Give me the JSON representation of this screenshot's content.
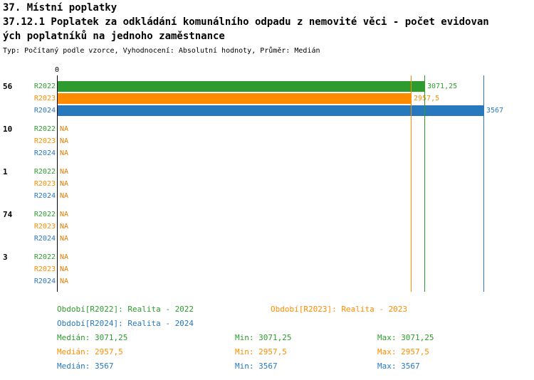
{
  "header": {
    "title": "37. Místní poplatky",
    "subtitle_line1": "37.12.1 Poplatek za odkládání komunálního odpadu z nemovité věci - počet evidovan",
    "subtitle_line2": "ých poplatníků na jednoho zaměstnance",
    "meta": "Typ: Počítaný podle vzorce, Vyhodnocení: Absolutní hodnoty, Průměr: Medián"
  },
  "colors": {
    "r2022": "#2e9b2e",
    "r2023": "#ff8c00",
    "r2024": "#2878bd",
    "na_text": "#e07b00",
    "axis": "#000000"
  },
  "chart_data": {
    "type": "bar",
    "orientation": "horizontal",
    "x_axis": {
      "origin_label": "0",
      "xlim": [
        0,
        3567
      ],
      "gridlines": false
    },
    "series_names": [
      "R2022",
      "R2023",
      "R2024"
    ],
    "series_colors": [
      "#2e9b2e",
      "#ff8c00",
      "#2878bd"
    ],
    "groups": [
      {
        "label": "56",
        "bars": [
          {
            "series": "R2022",
            "value": 3071.25,
            "display": "3071,25"
          },
          {
            "series": "R2023",
            "value": 2957.5,
            "display": "2957,5"
          },
          {
            "series": "R2024",
            "value": 3567,
            "display": "3567"
          }
        ]
      },
      {
        "label": "10",
        "bars": [
          {
            "series": "R2022",
            "value": null,
            "display": "NA"
          },
          {
            "series": "R2023",
            "value": null,
            "display": "NA"
          },
          {
            "series": "R2024",
            "value": null,
            "display": "NA"
          }
        ]
      },
      {
        "label": "1",
        "bars": [
          {
            "series": "R2022",
            "value": null,
            "display": "NA"
          },
          {
            "series": "R2023",
            "value": null,
            "display": "NA"
          },
          {
            "series": "R2024",
            "value": null,
            "display": "NA"
          }
        ]
      },
      {
        "label": "74",
        "bars": [
          {
            "series": "R2022",
            "value": null,
            "display": "NA"
          },
          {
            "series": "R2023",
            "value": null,
            "display": "NA"
          },
          {
            "series": "R2024",
            "value": null,
            "display": "NA"
          }
        ]
      },
      {
        "label": "3",
        "bars": [
          {
            "series": "R2022",
            "value": null,
            "display": "NA"
          },
          {
            "series": "R2023",
            "value": null,
            "display": "NA"
          },
          {
            "series": "R2024",
            "value": null,
            "display": "NA"
          }
        ]
      }
    ],
    "median_lines": [
      {
        "series": "R2022",
        "value": 3071.25
      },
      {
        "series": "R2023",
        "value": 2957.5
      },
      {
        "series": "R2024",
        "value": 3567
      }
    ]
  },
  "legend": {
    "items": [
      {
        "label": "Období[R2022]: Realita - 2022",
        "color": "#2e9b2e"
      },
      {
        "label": "Období[R2023]: Realita - 2023",
        "color": "#ff8c00"
      },
      {
        "label": "Období[R2024]: Realita - 2024",
        "color": "#2878bd"
      }
    ]
  },
  "stats": {
    "rows": [
      {
        "median": "Medián: 3071,25",
        "min": "Min: 3071,25",
        "max": "Max: 3071,25",
        "color": "#2e9b2e"
      },
      {
        "median": "Medián: 2957,5",
        "min": "Min: 2957,5",
        "max": "Max: 2957,5",
        "color": "#ff8c00"
      },
      {
        "median": "Medián: 3567",
        "min": "Min: 3567",
        "max": "Max: 3567",
        "color": "#2878bd"
      }
    ]
  }
}
